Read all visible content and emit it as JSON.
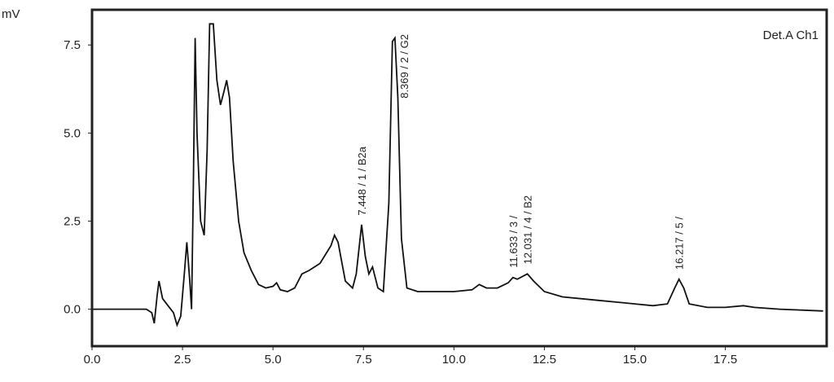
{
  "chart_data": {
    "type": "line",
    "y_label": "mV",
    "legend_text": "Det.A Ch1",
    "color": "#111111",
    "xlim": [
      0,
      20.3
    ],
    "ylim": [
      -1.05,
      8.5
    ],
    "xticks": [
      {
        "value": 0,
        "label": "0.0"
      },
      2.5,
      {
        "value": 5,
        "label": "5.0"
      },
      7.5,
      {
        "value": 10,
        "label": "10.0"
      },
      12.5,
      {
        "value": 15,
        "label": "15.0"
      },
      17.5
    ],
    "yticks": [
      {
        "value": 0,
        "label": "0.0"
      },
      2.5,
      {
        "value": 5,
        "label": "5.0"
      },
      7.5
    ],
    "x": [
      0,
      1.5,
      1.65,
      1.72,
      1.8,
      1.85,
      1.95,
      2.1,
      2.25,
      2.35,
      2.45,
      2.55,
      2.62,
      2.7,
      2.75,
      2.8,
      2.85,
      2.9,
      3.0,
      3.1,
      3.18,
      3.25,
      3.35,
      3.45,
      3.55,
      3.65,
      3.72,
      3.8,
      3.9,
      4.05,
      4.2,
      4.4,
      4.6,
      4.8,
      5.0,
      5.1,
      5.2,
      5.4,
      5.6,
      5.8,
      6.0,
      6.3,
      6.6,
      6.7,
      6.8,
      7.0,
      7.2,
      7.3,
      7.45,
      7.55,
      7.65,
      7.75,
      7.9,
      8.05,
      8.2,
      8.3,
      8.37,
      8.45,
      8.55,
      8.7,
      9.0,
      9.5,
      10.0,
      10.5,
      10.7,
      10.9,
      11.2,
      11.5,
      11.63,
      11.75,
      12.03,
      12.2,
      12.5,
      13.0,
      14.0,
      15.0,
      15.5,
      15.9,
      16.1,
      16.22,
      16.35,
      16.5,
      17.0,
      17.5,
      18.0,
      18.3,
      19.0,
      20.2
    ],
    "values": [
      0.0,
      0.0,
      -0.1,
      -0.4,
      0.4,
      0.8,
      0.3,
      0.1,
      -0.1,
      -0.45,
      -0.2,
      1.0,
      1.9,
      0.8,
      0.0,
      3.5,
      7.7,
      5.0,
      2.5,
      2.1,
      4.5,
      8.1,
      8.1,
      6.5,
      5.8,
      6.2,
      6.5,
      6.0,
      4.2,
      2.5,
      1.6,
      1.1,
      0.7,
      0.6,
      0.65,
      0.75,
      0.55,
      0.5,
      0.6,
      1.0,
      1.1,
      1.3,
      1.8,
      2.1,
      1.9,
      0.8,
      0.6,
      1.0,
      2.4,
      1.5,
      1.0,
      1.2,
      0.6,
      0.5,
      3.0,
      7.6,
      7.7,
      6.0,
      2.0,
      0.6,
      0.5,
      0.5,
      0.5,
      0.55,
      0.7,
      0.6,
      0.6,
      0.75,
      0.9,
      0.85,
      1.0,
      0.8,
      0.5,
      0.35,
      0.25,
      0.15,
      0.1,
      0.15,
      0.6,
      0.85,
      0.6,
      0.15,
      0.05,
      0.05,
      0.1,
      0.05,
      0.0,
      -0.05
    ],
    "annotations": [
      {
        "text": "7.448 / 1 / B2a",
        "x": 7.448
      },
      {
        "text": "8.369 / 2 / G2",
        "x": 8.369
      },
      {
        "text": "11.633 / 3 /",
        "x": 11.633
      },
      {
        "text": "12.031 / 4 / B2",
        "x": 12.031
      },
      {
        "text": "16.217 / 5 /",
        "x": 16.217
      }
    ]
  }
}
